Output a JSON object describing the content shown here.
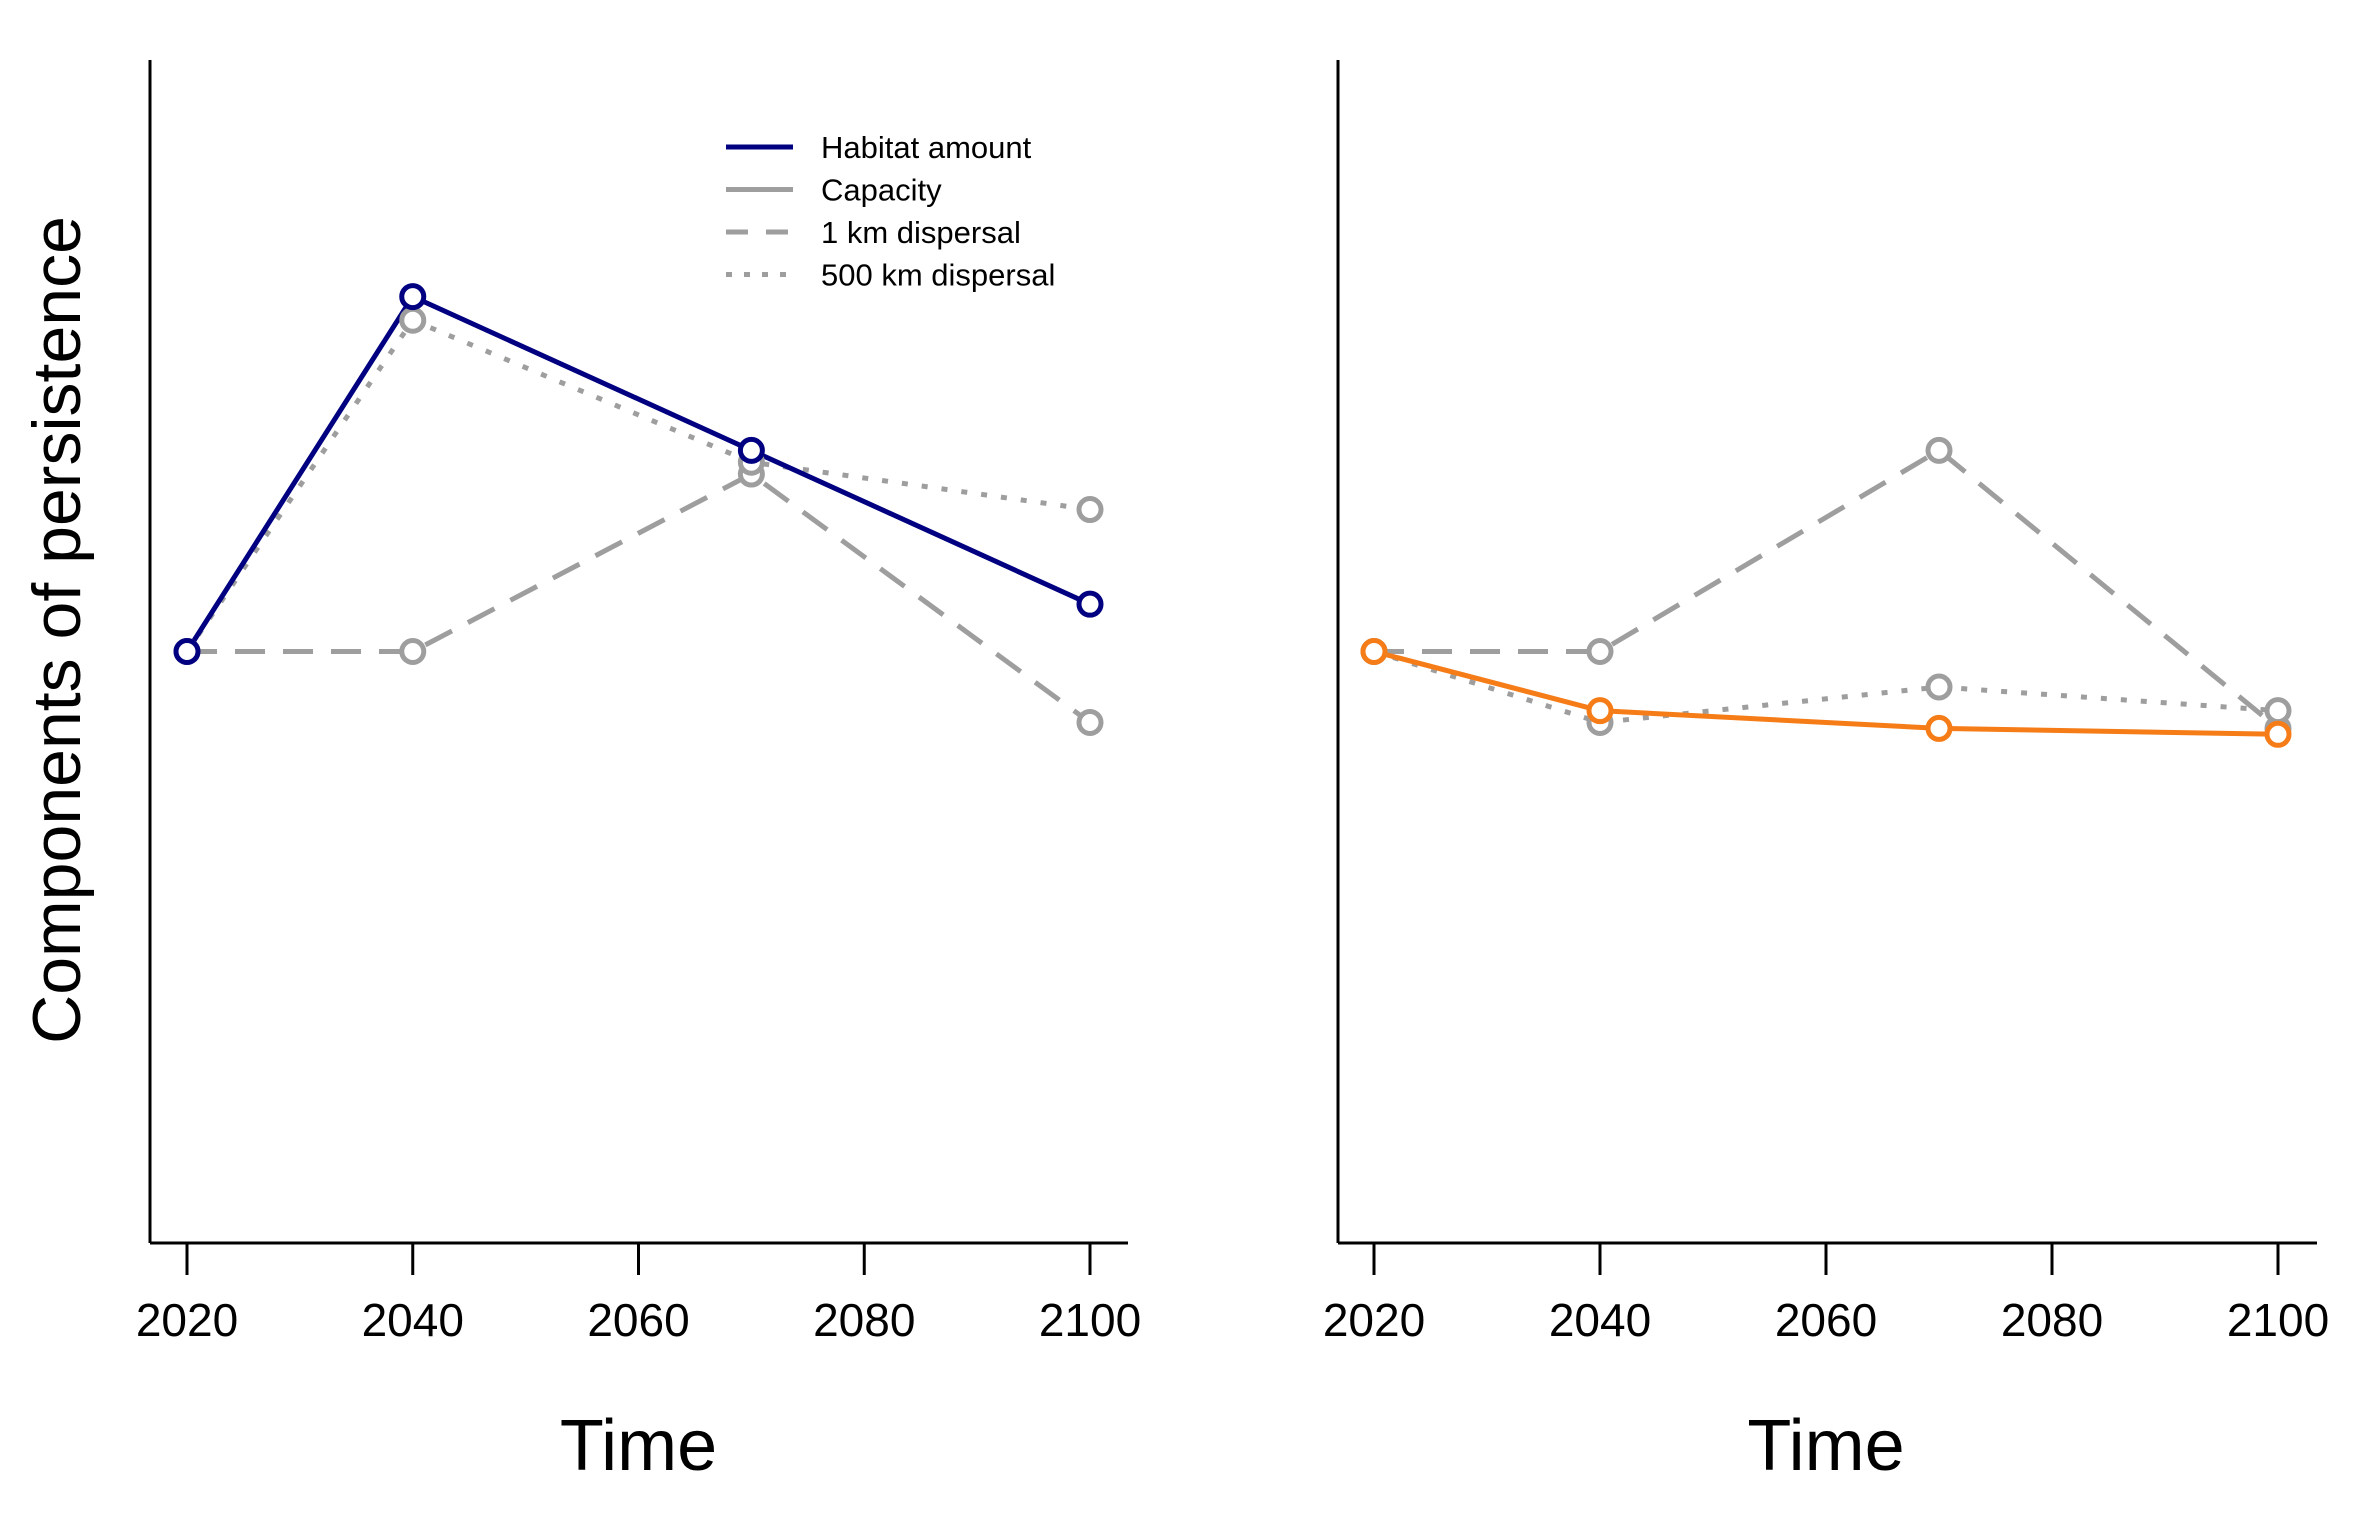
{
  "figure": {
    "ylabel": "Components of persistence"
  },
  "legend": {
    "location": "top-right of left panel",
    "entries": [
      {
        "label": "Habitat amount",
        "style": "solid",
        "color": "#000080"
      },
      {
        "label": "Capacity",
        "style": "solid",
        "color": "#9e9e9e"
      },
      {
        "label": "1 km dispersal",
        "style": "dashed",
        "color": "#9e9e9e"
      },
      {
        "label": "500 km dispersal",
        "style": "dotted",
        "color": "#9e9e9e"
      }
    ]
  },
  "colors": {
    "habitat_left": "#000080",
    "habitat_right": "#f57c17",
    "gray": "#9e9e9e"
  },
  "chart_data": [
    {
      "type": "line",
      "panel": "left",
      "xlabel": "Time",
      "ylabel": "Components of persistence",
      "x": [
        2020,
        2040,
        2070,
        2100
      ],
      "xlim": [
        2017,
        2103
      ],
      "xticks": [
        2020,
        2040,
        2060,
        2080,
        2100
      ],
      "ylim": [
        0,
        1
      ],
      "y_ticks_shown": false,
      "series": [
        {
          "name": "Habitat amount",
          "style": "solid",
          "color": "#000080",
          "y": [
            0.5,
            0.8,
            0.67,
            0.54
          ]
        },
        {
          "name": "1 km dispersal",
          "style": "dashed",
          "color": "#9e9e9e",
          "y": [
            0.5,
            0.5,
            0.65,
            0.44
          ]
        },
        {
          "name": "500 km dispersal",
          "style": "dotted",
          "color": "#9e9e9e",
          "y": [
            0.5,
            0.78,
            0.66,
            0.62
          ]
        }
      ]
    },
    {
      "type": "line",
      "panel": "right",
      "xlabel": "Time",
      "x": [
        2020,
        2040,
        2070,
        2100
      ],
      "xlim": [
        2017,
        2103
      ],
      "xticks": [
        2020,
        2040,
        2060,
        2080,
        2100
      ],
      "ylim": [
        0,
        1
      ],
      "y_ticks_shown": false,
      "series": [
        {
          "name": "Habitat amount",
          "style": "solid",
          "color": "#f57c17",
          "y": [
            0.5,
            0.45,
            0.435,
            0.43
          ]
        },
        {
          "name": "1 km dispersal",
          "style": "dashed",
          "color": "#9e9e9e",
          "y": [
            0.5,
            0.5,
            0.67,
            0.435
          ]
        },
        {
          "name": "500 km dispersal",
          "style": "dotted",
          "color": "#9e9e9e",
          "y": [
            0.5,
            0.44,
            0.47,
            0.45
          ]
        }
      ]
    }
  ]
}
